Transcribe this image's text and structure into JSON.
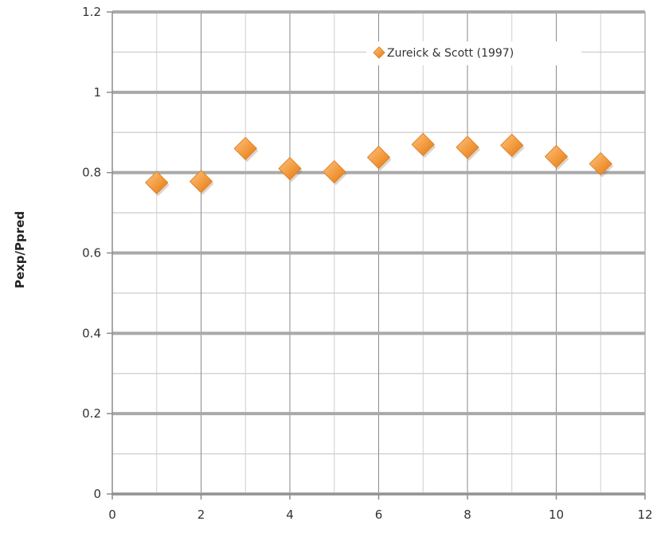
{
  "chart_data": {
    "type": "scatter",
    "title": "",
    "xlabel": "",
    "ylabel": "Pexp/Ppred",
    "xlim": [
      0,
      12
    ],
    "ylim": [
      0,
      1.2
    ],
    "x_ticks": [
      "0",
      "2",
      "4",
      "6",
      "8",
      "10",
      "12"
    ],
    "y_ticks": [
      "0",
      "0.2",
      "0.4",
      "0.6",
      "0.8",
      "1",
      "1.2"
    ],
    "x_minor_step": 1,
    "y_minor_step": 0.1,
    "grid": true,
    "legend_position": "top-right",
    "marker": "diamond",
    "series": [
      {
        "name": "Zureick & Scott (1997)",
        "color": "#f39a3c",
        "x": [
          1,
          2,
          3,
          4,
          5,
          6,
          7,
          8,
          9,
          10,
          11
        ],
        "y": [
          0.775,
          0.778,
          0.86,
          0.81,
          0.802,
          0.838,
          0.87,
          0.863,
          0.868,
          0.84,
          0.822
        ]
      }
    ]
  }
}
